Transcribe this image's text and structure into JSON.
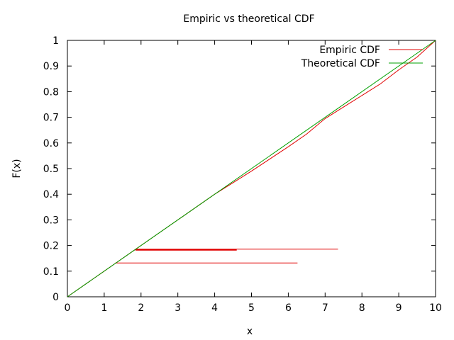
{
  "chart_data": {
    "type": "line",
    "title": "Empiric vs theoretical CDF",
    "xlabel": "x",
    "ylabel": "F(x)",
    "xlim": [
      0,
      10
    ],
    "ylim": [
      0,
      1
    ],
    "xticks": [
      "0",
      "1",
      "2",
      "3",
      "4",
      "5",
      "6",
      "7",
      "8",
      "9",
      "10"
    ],
    "yticks": [
      "0",
      "0.1",
      "0.2",
      "0.3",
      "0.4",
      "0.5",
      "0.6",
      "0.7",
      "0.8",
      "0.9",
      "1"
    ],
    "grid": false,
    "legend_position": "top-right",
    "series": [
      {
        "name": "Empiric CDF",
        "color": "#e00000",
        "segments": [
          [
            [
              0,
              0
            ],
            [
              1,
              0.1
            ],
            [
              1.3,
              0.13
            ],
            [
              1.8,
              0.18
            ],
            [
              2,
              0.2
            ],
            [
              3,
              0.3
            ],
            [
              4,
              0.4
            ],
            [
              4.5,
              0.445
            ],
            [
              5,
              0.49
            ],
            [
              6,
              0.585
            ],
            [
              6.5,
              0.635
            ],
            [
              7,
              0.695
            ],
            [
              7.5,
              0.74
            ],
            [
              8,
              0.785
            ],
            [
              8.5,
              0.83
            ],
            [
              9,
              0.885
            ],
            [
              9.5,
              0.935
            ],
            [
              10,
              1
            ]
          ],
          [
            [
              1.3,
              0.132
            ],
            [
              6.25,
              0.132
            ]
          ],
          [
            [
              1.85,
              0.183
            ],
            [
              4.6,
              0.183
            ]
          ],
          [
            [
              1.85,
              0.186
            ],
            [
              7.35,
              0.186
            ]
          ]
        ]
      },
      {
        "name": "Theoretical CDF",
        "color": "#00a000",
        "segments": [
          [
            [
              0,
              0
            ],
            [
              10,
              1
            ]
          ]
        ]
      }
    ]
  }
}
